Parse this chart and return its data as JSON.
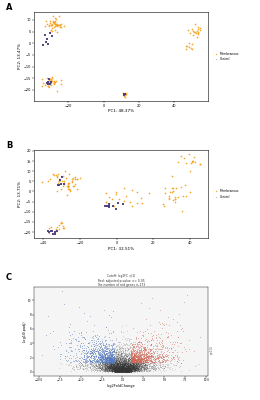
{
  "panel_A_label": "A",
  "panel_B_label": "B",
  "panel_C_label": "C",
  "legend_membranous": "Membranous",
  "legend_control": "Control",
  "pcaA_xlabel": "PC1: 48.37%",
  "pcaA_ylabel": "PC2: 13.47%",
  "pcaB_xlabel": "PC1: 32.51%",
  "pcaB_ylabel": "PC2: 13.71%",
  "volcano_xlabel": "log2FoldChange",
  "volcano_ylabel": "-log10(padj)",
  "volcano_title1": "Cutoff: log2FC >|1|",
  "volcano_title2": "Red: adjusted p-value <= 0.05",
  "volcano_title3": "The number of red genes is 273",
  "orange_color": "#F5A623",
  "purple_color": "#4A4080",
  "blue_color": "#5577BB",
  "red_color": "#CC6655",
  "black_color": "#333333",
  "bg_color": "#E8E8E8",
  "white_color": "#FFFFFF",
  "plot_bg": "#F5F5F5"
}
